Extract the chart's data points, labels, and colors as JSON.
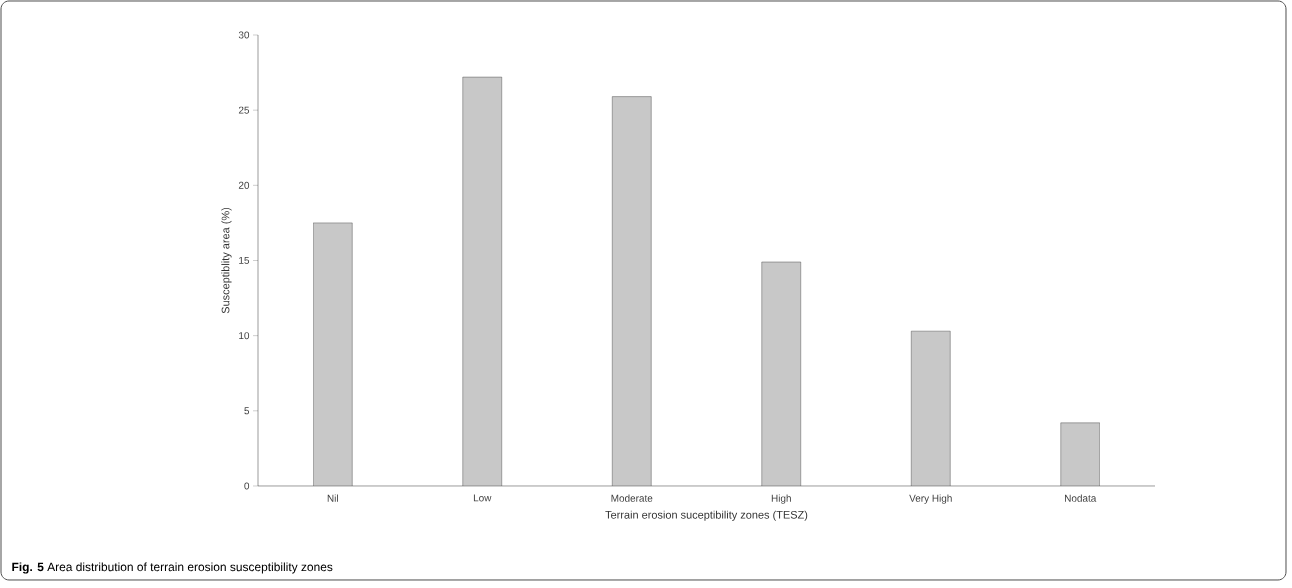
{
  "chart_data": {
    "type": "bar",
    "xlabel": "Terrain erosion suceptibility zones (TESZ)",
    "ylabel": "Susceptiblity area (%)",
    "categories": [
      "Nil",
      "Low",
      "Moderate",
      "High",
      "Very High",
      "Nodata"
    ],
    "values": [
      17.5,
      27.2,
      25.9,
      14.9,
      10.3,
      4.2
    ],
    "color": "#c8c8c8",
    "ylim": [
      0,
      30
    ],
    "yticks": [
      0,
      5,
      10,
      15,
      20,
      25,
      30
    ],
    "grid": false,
    "annotations": [
      "**Fig. 5** Area distribution of terrain erosion susceptibility zones"
    ]
  }
}
